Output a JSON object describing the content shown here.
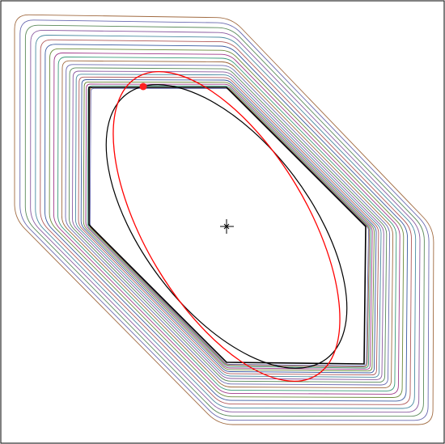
{
  "colors": {
    "background": "#ffffff",
    "frame": "#000000",
    "contour_palette": [
      "#6a6ab0",
      "#a06a40",
      "#3a9a7a",
      "#a03a8a",
      "#6a8a3a",
      "#3a5aa0",
      "#b05a5a",
      "#4a8aa0",
      "#8a5aa0",
      "#5a8a5a"
    ],
    "ellipse_black": "#000000",
    "ellipse_red": "#ff0000",
    "point_red": "#ff2020",
    "center_marker": "#000000"
  },
  "diagram": {
    "contour_count": 22,
    "shapes": [
      {
        "name": "outer-contour-family",
        "shape": "rounded-hexagon"
      },
      {
        "name": "inner-hexagon",
        "shape": "hexagon"
      },
      {
        "name": "black-ellipse",
        "shape": "ellipse"
      },
      {
        "name": "red-ellipse",
        "shape": "ellipse"
      },
      {
        "name": "red-point",
        "shape": "dot"
      },
      {
        "name": "center-marker",
        "shape": "crosshair"
      }
    ]
  }
}
